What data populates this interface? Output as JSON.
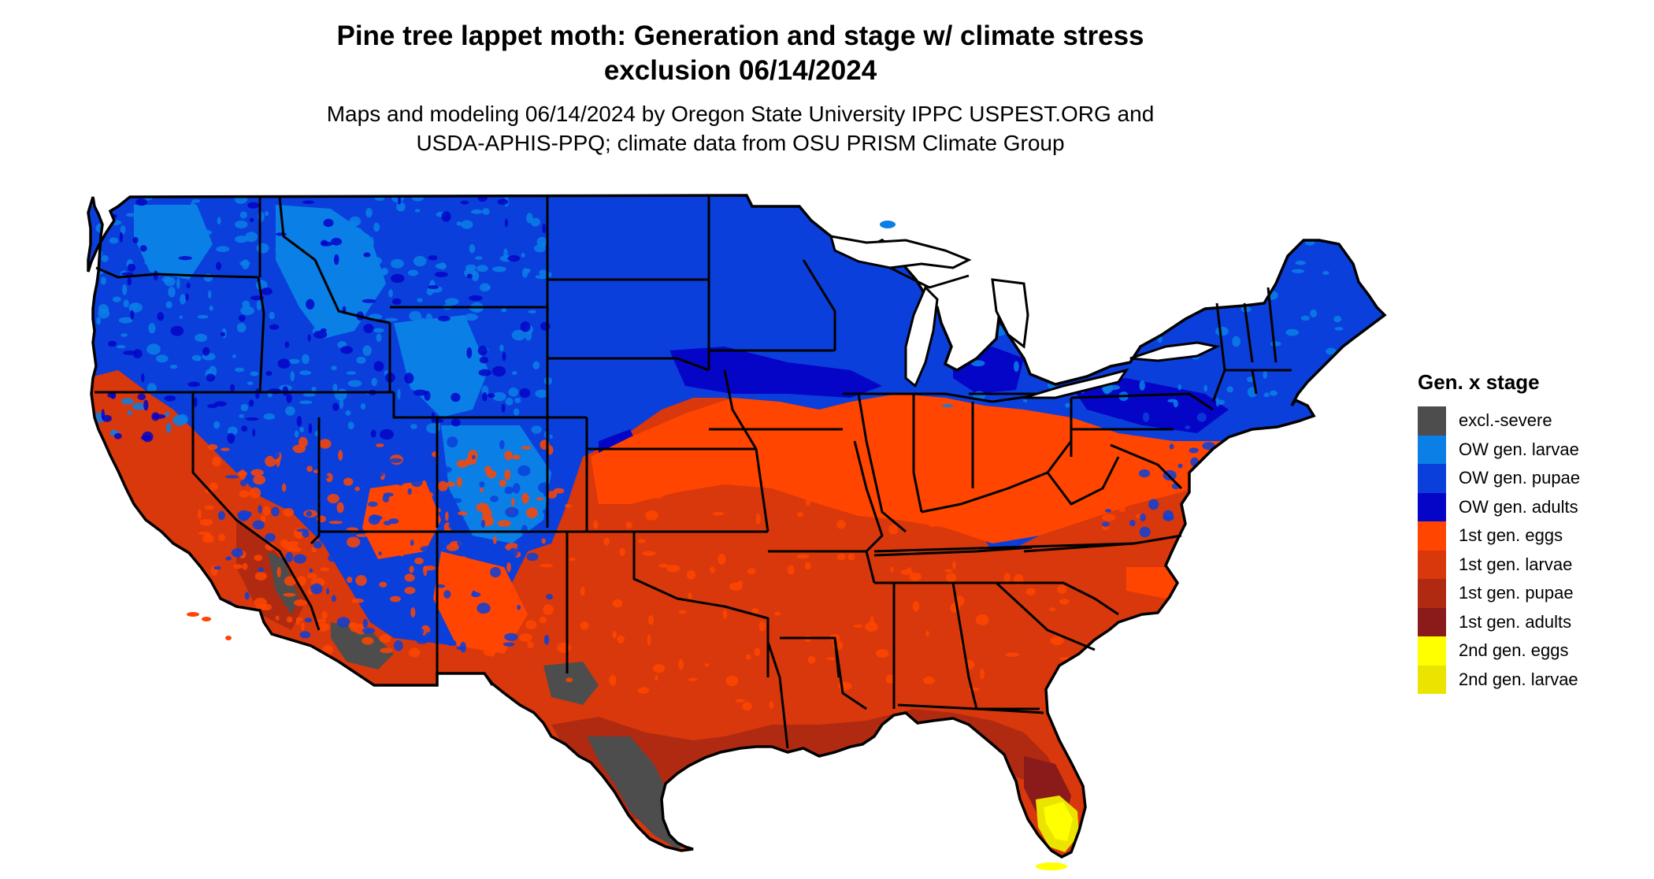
{
  "title_line1": "Pine tree lappet moth: Generation and stage w/ climate stress",
  "title_line2": "exclusion 06/14/2024",
  "subtitle_line1": "Maps and modeling 06/14/2024 by Oregon State University IPPC USPEST.ORG and",
  "subtitle_line2": "USDA-APHIS-PPQ; climate data from OSU PRISM Climate Group",
  "legend": {
    "title": "Gen. x stage",
    "items": [
      {
        "label": "excl.-severe",
        "color": "#4d4d4d"
      },
      {
        "label": "OW gen. larvae",
        "color": "#0a7fe6"
      },
      {
        "label": "OW gen. pupae",
        "color": "#0b3fdb"
      },
      {
        "label": "OW gen. adults",
        "color": "#0505c8"
      },
      {
        "label": "1st gen. eggs",
        "color": "#ff4500"
      },
      {
        "label": "1st gen. larvae",
        "color": "#d8380b"
      },
      {
        "label": "1st gen. pupae",
        "color": "#b02a12"
      },
      {
        "label": "1st gen. adults",
        "color": "#8b1a1a"
      },
      {
        "label": "2nd gen. eggs",
        "color": "#ffff00"
      },
      {
        "label": "2nd gen. larvae",
        "color": "#ebe300"
      }
    ]
  }
}
